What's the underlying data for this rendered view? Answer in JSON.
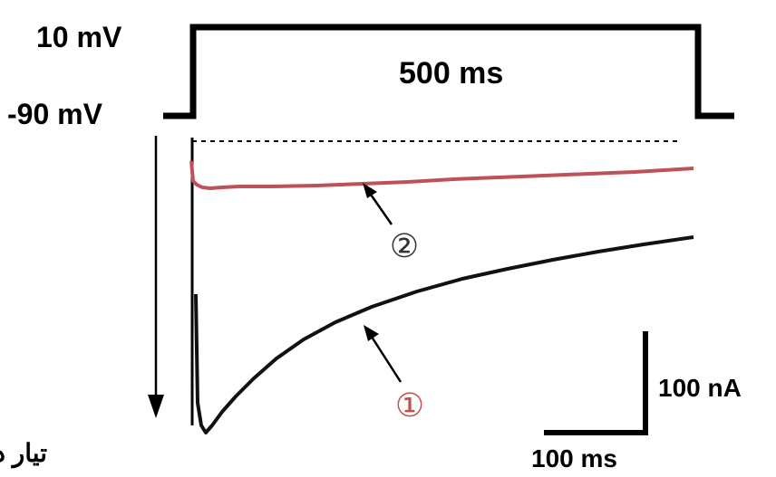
{
  "protocol": {
    "high_label": "10 mV",
    "low_label": "-90 mV",
    "duration_label": "500 ms"
  },
  "traces": {
    "trace_1_marker": "①",
    "trace_2_marker": "②",
    "trace_1_color": "#111111",
    "trace_2_color": "#c0505a",
    "trace_1_marker_color": "#c0504d",
    "trace_2_marker_color": "#333333"
  },
  "scale_bar": {
    "current_label": "100 nA",
    "time_label": "100 ms"
  },
  "direction": {
    "label": "تيار داخل"
  }
}
